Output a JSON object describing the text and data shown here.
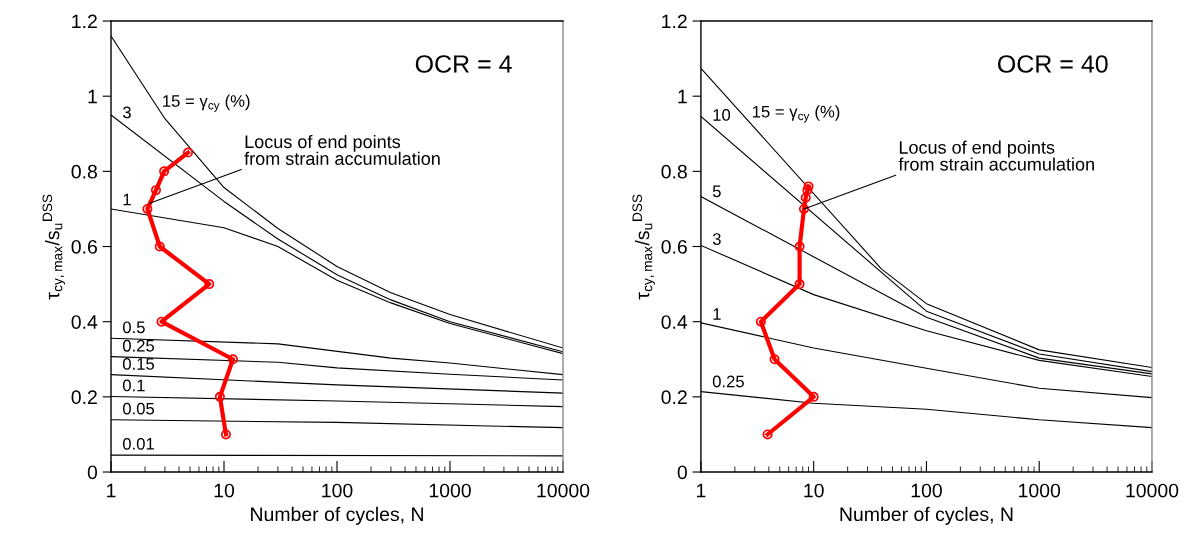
{
  "chart_data": [
    {
      "type": "line",
      "xlabel": "Number of cycles, N",
      "ylabel": "τ$_{cy,max}$/s$_{u}$$^{DSS}$",
      "log": "x",
      "xlim": [
        1,
        10000
      ],
      "xticks": [
        1,
        10,
        100,
        1000,
        10000
      ],
      "ylim": [
        0,
        1.2
      ],
      "yticks": [
        0,
        0.2,
        0.4,
        0.6,
        0.8,
        1,
        1.2
      ],
      "grid": false,
      "series": [
        {
          "color": "#000000",
          "marker": "none",
          "x": [
            1,
            3,
            10,
            30,
            100,
            300,
            1000,
            10000
          ],
          "values": [
            1.16,
            0.94,
            0.757,
            0.648,
            0.547,
            0.477,
            0.419,
            0.33
          ]
        },
        {
          "color": "#000000",
          "marker": "none",
          "x": [
            1,
            10,
            30,
            100,
            300,
            1000,
            10000
          ],
          "values": [
            0.95,
            0.72,
            0.62,
            0.525,
            0.458,
            0.4,
            0.32
          ]
        },
        {
          "color": "#000000",
          "marker": "none",
          "x": [
            1,
            10,
            30,
            100,
            300,
            1000,
            10000
          ],
          "values": [
            0.7,
            0.65,
            0.6,
            0.51,
            0.45,
            0.395,
            0.315
          ]
        },
        {
          "color": "#000000",
          "marker": "none",
          "x": [
            1,
            30,
            300,
            1000,
            10000
          ],
          "values": [
            0.356,
            0.341,
            0.303,
            0.29,
            0.259
          ]
        },
        {
          "color": "#000000",
          "marker": "none",
          "x": [
            1,
            30,
            100,
            1000,
            10000
          ],
          "values": [
            0.307,
            0.292,
            0.277,
            0.26,
            0.245
          ]
        },
        {
          "color": "#000000",
          "marker": "none",
          "x": [
            1,
            100,
            10000
          ],
          "values": [
            0.259,
            0.232,
            0.21
          ]
        },
        {
          "color": "#000000",
          "marker": "none",
          "x": [
            1,
            100,
            10000
          ],
          "values": [
            0.201,
            0.189,
            0.174
          ]
        },
        {
          "color": "#000000",
          "marker": "none",
          "x": [
            1,
            100,
            10000
          ],
          "values": [
            0.139,
            0.132,
            0.118
          ]
        },
        {
          "color": "#000000",
          "marker": "none",
          "x": [
            1,
            10000
          ],
          "values": [
            0.045,
            0.043
          ]
        },
        {
          "color": "#ff0000",
          "marker": "circle",
          "x": [
            4.8,
            2.95,
            2.5,
            2.1,
            2.7,
            7.4,
            2.8,
            12,
            9.2,
            10.4
          ],
          "values": [
            0.85,
            0.8,
            0.75,
            0.7,
            0.6,
            0.5,
            0.4,
            0.3,
            0.2,
            0.1
          ]
        }
      ],
      "annotations": [
        "OCR = 4",
        "15 = γ$_{cy}$ (%)",
        "3",
        "1",
        "0.5",
        "0.25",
        "0.15",
        "0.1",
        "0.05",
        "0.01",
        {
          "text": "Locus of end points\nfrom strain accumulation",
          "x": 2.2,
          "y": 0.715
        }
      ]
    },
    {
      "type": "line",
      "xlabel": "Number of cycles, N",
      "ylabel": "τ$_{cy,max}$/s$_{u}$$^{DSS}$",
      "log": "x",
      "xlim": [
        1,
        10000
      ],
      "xticks": [
        1,
        10,
        100,
        1000,
        10000
      ],
      "ylim": [
        0,
        1.2
      ],
      "yticks": [
        0,
        0.2,
        0.4,
        0.6,
        0.8,
        1,
        1.2
      ],
      "grid": false,
      "series": [
        {
          "color": "#000000",
          "marker": "none",
          "x": [
            1,
            40,
            100,
            1000,
            10000
          ],
          "values": [
            1.074,
            0.54,
            0.448,
            0.325,
            0.278
          ]
        },
        {
          "color": "#000000",
          "marker": "none",
          "x": [
            1,
            100,
            1000,
            10000
          ],
          "values": [
            0.946,
            0.428,
            0.314,
            0.267
          ]
        },
        {
          "color": "#000000",
          "marker": "none",
          "x": [
            1,
            100,
            1000,
            10000
          ],
          "values": [
            0.733,
            0.412,
            0.303,
            0.261
          ]
        },
        {
          "color": "#000000",
          "marker": "none",
          "x": [
            1,
            10,
            100,
            1000,
            10000
          ],
          "values": [
            0.603,
            0.472,
            0.376,
            0.297,
            0.254
          ]
        },
        {
          "color": "#000000",
          "marker": "none",
          "x": [
            1,
            10,
            100,
            1000,
            10000
          ],
          "values": [
            0.397,
            0.33,
            0.276,
            0.223,
            0.198
          ]
        },
        {
          "color": "#000000",
          "marker": "none",
          "x": [
            1,
            10,
            100,
            1000,
            10000
          ],
          "values": [
            0.214,
            0.183,
            0.167,
            0.139,
            0.118
          ]
        },
        {
          "color": "#ff0000",
          "marker": "circle",
          "x": [
            9.0,
            8.8,
            8.5,
            8.2,
            7.5,
            7.5,
            3.4,
            4.5,
            10,
            3.9
          ],
          "values": [
            0.76,
            0.75,
            0.73,
            0.7,
            0.6,
            0.5,
            0.4,
            0.3,
            0.2,
            0.1
          ]
        }
      ],
      "annotations": [
        "OCR = 40",
        "15 = γ$_{cy}$ (%)",
        "10",
        "5",
        "3",
        "1",
        "0.25",
        {
          "text": "Locus of end points\nfrom strain accumulation",
          "x": 8.2,
          "y": 0.7
        }
      ]
    }
  ]
}
